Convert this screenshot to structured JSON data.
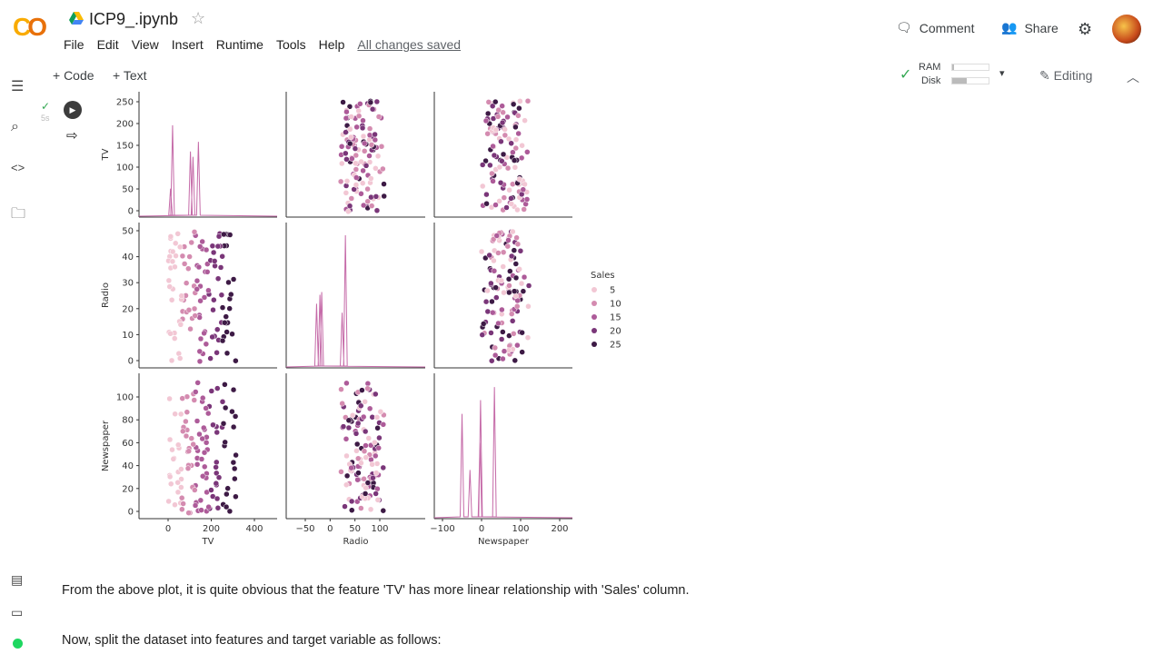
{
  "app": {
    "logo": "CO",
    "title": "ICP9_.ipynb",
    "saved": "All changes saved"
  },
  "menu": [
    "File",
    "Edit",
    "View",
    "Insert",
    "Runtime",
    "Tools",
    "Help"
  ],
  "header": {
    "comment": "Comment",
    "share": "Share"
  },
  "toolbar": {
    "code": "+ Code",
    "text": "+ Text",
    "ram": "RAM",
    "disk": "Disk",
    "ram_usage": 0.05,
    "disk_usage": 0.4,
    "editing": "Editing"
  },
  "cell": {
    "exec_time": "5s"
  },
  "plot": {
    "vars": [
      "TV",
      "Radio",
      "Newspaper"
    ],
    "yticks": [
      [
        "0",
        "50",
        "100",
        "150",
        "200",
        "250"
      ],
      [
        "0",
        "10",
        "20",
        "30",
        "40",
        "50"
      ],
      [
        "0",
        "20",
        "40",
        "60",
        "80",
        "100"
      ]
    ],
    "xticks": [
      [
        "0",
        "200",
        "400"
      ],
      [
        "−50",
        "0",
        "50",
        "100"
      ],
      [
        "−100",
        "0",
        "100",
        "200"
      ]
    ],
    "legend": {
      "title": "Sales",
      "items": [
        "5",
        "10",
        "15",
        "20",
        "25"
      ],
      "colors": [
        "#f2c7d4",
        "#d48bb0",
        "#ad5b99",
        "#7a3679",
        "#3d1a45"
      ]
    }
  },
  "markdown": [
    "From the above plot, it is quite obvious that the feature 'TV' has more linear relationship with 'Sales' column.",
    "Now, split the dataset into features and target variable as follows:"
  ]
}
